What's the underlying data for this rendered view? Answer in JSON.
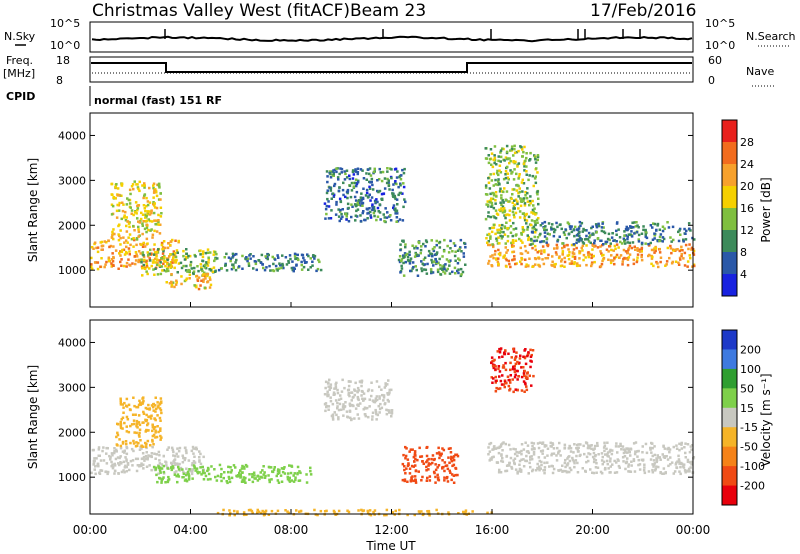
{
  "header": {
    "station": "Christmas Valley West (fitACF)",
    "beam": "Beam 23",
    "date": "17/Feb/2016"
  },
  "nsky_panel": {
    "label_left": "N.Sky",
    "label_right": "N.Search",
    "y_ticks_left": [
      "10^5",
      "10^0"
    ],
    "y_ticks_right": [
      "10^5",
      "10^0"
    ]
  },
  "freq_panel": {
    "label_left_1": "Freq.",
    "label_left_2": "[MHz]",
    "label_right": "Nave",
    "y_ticks_left": [
      "18",
      "8"
    ],
    "y_ticks_right": [
      "60",
      "0"
    ]
  },
  "cpid": {
    "label": "CPID",
    "value": "normal (fast) 151 RF"
  },
  "chart_data": [
    {
      "type": "heatmap",
      "title": "",
      "ylabel": "Slant Range [km]",
      "xlabel": "",
      "xlim": [
        0,
        24
      ],
      "ylim": [
        180,
        4500
      ],
      "y_ticks": [
        1000,
        2000,
        3000,
        4000
      ],
      "colorbar": {
        "label": "Power [dB]",
        "ticks": [
          28,
          24,
          20,
          16,
          12,
          8,
          4
        ],
        "colors": [
          "#e8201c",
          "#f26c1e",
          "#f7a12c",
          "#f5d000",
          "#7fbf3f",
          "#3c8a5a",
          "#2a58a8",
          "#1822e0"
        ]
      },
      "regions": [
        {
          "t0": 0.0,
          "t1": 3.5,
          "r0": 1050,
          "r1": 1700,
          "level": 22
        },
        {
          "t0": 0.8,
          "t1": 2.8,
          "r0": 1700,
          "r1": 3000,
          "level": 18
        },
        {
          "t0": 2.0,
          "t1": 5.0,
          "r0": 900,
          "r1": 1500,
          "level": 14
        },
        {
          "t0": 3.0,
          "t1": 4.8,
          "r0": 600,
          "r1": 950,
          "level": 20
        },
        {
          "t0": 5.0,
          "t1": 9.2,
          "r0": 1000,
          "r1": 1400,
          "level": 9
        },
        {
          "t0": 12.2,
          "t1": 14.9,
          "r0": 900,
          "r1": 1700,
          "level": 10
        },
        {
          "t0": 9.3,
          "t1": 12.5,
          "r0": 2100,
          "r1": 3300,
          "level": 8
        },
        {
          "t0": 15.8,
          "t1": 24.0,
          "r0": 1100,
          "r1": 1600,
          "level": 22
        },
        {
          "t0": 15.7,
          "t1": 17.8,
          "r0": 1600,
          "r1": 3800,
          "level": 14
        },
        {
          "t0": 17.5,
          "t1": 24.0,
          "r0": 1600,
          "r1": 2100,
          "level": 9
        }
      ]
    },
    {
      "type": "heatmap",
      "title": "",
      "ylabel": "Slant Range [km]",
      "xlabel": "Time UT",
      "xlim": [
        0,
        24
      ],
      "ylim": [
        180,
        4500
      ],
      "y_ticks": [
        1000,
        2000,
        3000,
        4000
      ],
      "x_ticks": [
        "00:00",
        "04:00",
        "08:00",
        "12:00",
        "16:00",
        "20:00",
        "00:00"
      ],
      "colorbar": {
        "label": "Velocity [m s⁻¹]",
        "ticks": [
          200,
          100,
          50,
          15,
          -15,
          -50,
          -100,
          -200
        ],
        "colors": [
          "#1d39c8",
          "#3e7ae0",
          "#2f9e30",
          "#7ed04a",
          "#c8c8c0",
          "#f5b428",
          "#f58218",
          "#f04a14",
          "#e8000c"
        ]
      },
      "regions": [
        {
          "t0": 0.0,
          "t1": 4.5,
          "r0": 1100,
          "r1": 1700,
          "level": 0
        },
        {
          "t0": 1.0,
          "t1": 2.8,
          "r0": 1700,
          "r1": 2800,
          "level": -30
        },
        {
          "t0": 2.5,
          "t1": 8.8,
          "r0": 900,
          "r1": 1300,
          "level": 30
        },
        {
          "t0": 12.4,
          "t1": 14.6,
          "r0": 900,
          "r1": 1700,
          "level": -120
        },
        {
          "t0": 15.8,
          "t1": 24.0,
          "r0": 1100,
          "r1": 1800,
          "level": 0
        },
        {
          "t0": 15.9,
          "t1": 17.6,
          "r0": 2900,
          "r1": 3900,
          "level": -200
        },
        {
          "t0": 9.3,
          "t1": 12.0,
          "r0": 2300,
          "r1": 3200,
          "level": 0
        },
        {
          "t0": 5.0,
          "t1": 16.0,
          "r0": 180,
          "r1": 300,
          "level": -40
        }
      ]
    }
  ]
}
